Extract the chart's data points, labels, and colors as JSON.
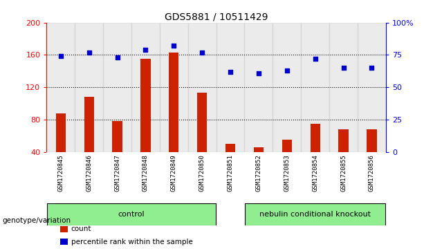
{
  "title": "GDS5881 / 10511429",
  "samples": [
    "GSM1720845",
    "GSM1720846",
    "GSM1720847",
    "GSM1720848",
    "GSM1720849",
    "GSM1720850",
    "GSM1720851",
    "GSM1720852",
    "GSM1720853",
    "GSM1720854",
    "GSM1720855",
    "GSM1720856"
  ],
  "count_values": [
    88,
    108,
    78,
    155,
    163,
    113,
    50,
    46,
    55,
    75,
    68,
    68
  ],
  "percentile_values": [
    74,
    77,
    73,
    79,
    82,
    77,
    62,
    61,
    63,
    72,
    65,
    65
  ],
  "groups": [
    {
      "label": "control",
      "color": "#90EE90",
      "start": 0,
      "end": 6
    },
    {
      "label": "nebulin conditional knockout",
      "color": "#90EE90",
      "start": 6,
      "end": 12
    }
  ],
  "bar_color": "#CC2200",
  "dot_color": "#0000CC",
  "left_ylim": [
    40,
    200
  ],
  "left_yticks": [
    40,
    80,
    120,
    160,
    200
  ],
  "right_ylim": [
    0,
    100
  ],
  "right_yticks": [
    0,
    25,
    50,
    75,
    100
  ],
  "right_yticklabels": [
    "0",
    "25",
    "50",
    "75",
    "100%"
  ],
  "hlines": [
    80,
    120,
    160
  ],
  "bar_width": 0.35,
  "legend_items": [
    {
      "label": "count",
      "color": "#CC2200"
    },
    {
      "label": "percentile rank within the sample",
      "color": "#0000CC"
    }
  ],
  "genotype_label": "genotype/variation",
  "sample_bg_color": "#C8C8C8",
  "plot_bg": "#FFFFFF",
  "green_light": "#90EE90",
  "green_dark": "#44CC44"
}
